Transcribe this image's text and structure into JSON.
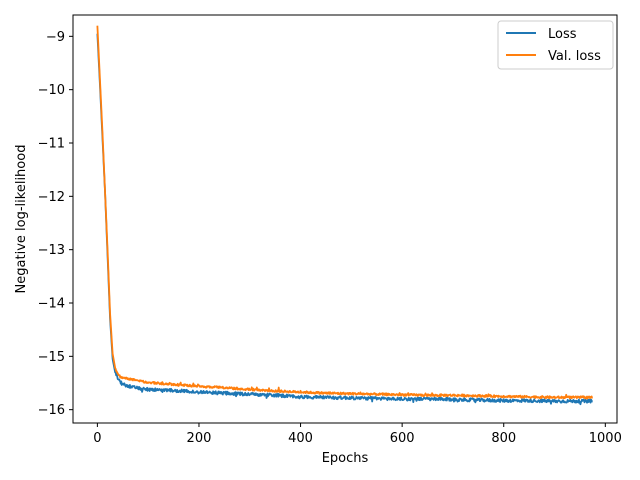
{
  "chart_data": {
    "type": "line",
    "xlabel": "Epochs",
    "ylabel": "Negative log-likelihood",
    "xlim": [
      -48,
      1023
    ],
    "ylim": [
      -16.25,
      -8.6
    ],
    "x_ticks": [
      0,
      200,
      400,
      600,
      800,
      1000
    ],
    "y_ticks": [
      -16,
      -15,
      -14,
      -13,
      -12,
      -11,
      -10,
      -9
    ],
    "x_tick_labels": [
      "0",
      "200",
      "400",
      "600",
      "800",
      "1000"
    ],
    "y_tick_labels": [
      "−16",
      "−15",
      "−14",
      "−13",
      "−12",
      "−11",
      "−10",
      "−9"
    ],
    "legend_position": "top-right",
    "grid": false,
    "series": [
      {
        "name": "Loss",
        "color": "#1f77b4",
        "noise": 0.03,
        "x": [
          0,
          5,
          10,
          15,
          20,
          25,
          30,
          35,
          40,
          45,
          50,
          60,
          70,
          80,
          100,
          150,
          200,
          250,
          300,
          350,
          400,
          450,
          500,
          550,
          600,
          650,
          700,
          750,
          800,
          850,
          900,
          975
        ],
        "y": [
          -8.95,
          -9.9,
          -10.9,
          -11.9,
          -13.1,
          -14.3,
          -15.05,
          -15.3,
          -15.4,
          -15.48,
          -15.53,
          -15.55,
          -15.58,
          -15.6,
          -15.62,
          -15.64,
          -15.67,
          -15.69,
          -15.71,
          -15.73,
          -15.76,
          -15.77,
          -15.78,
          -15.79,
          -15.8,
          -15.8,
          -15.81,
          -15.82,
          -15.83,
          -15.83,
          -15.84,
          -15.84
        ]
      },
      {
        "name": "Val. loss",
        "color": "#ff7f0e",
        "noise": 0.02,
        "x": [
          0,
          5,
          10,
          15,
          20,
          25,
          30,
          35,
          40,
          45,
          50,
          60,
          70,
          80,
          100,
          150,
          200,
          250,
          300,
          350,
          400,
          450,
          500,
          550,
          600,
          650,
          700,
          750,
          800,
          850,
          900,
          975
        ],
        "y": [
          -8.8,
          -9.8,
          -10.8,
          -11.9,
          -13.0,
          -14.2,
          -14.95,
          -15.22,
          -15.33,
          -15.38,
          -15.4,
          -15.42,
          -15.44,
          -15.46,
          -15.49,
          -15.53,
          -15.56,
          -15.59,
          -15.62,
          -15.65,
          -15.67,
          -15.69,
          -15.7,
          -15.71,
          -15.72,
          -15.73,
          -15.73,
          -15.74,
          -15.75,
          -15.76,
          -15.77,
          -15.77
        ]
      }
    ]
  }
}
